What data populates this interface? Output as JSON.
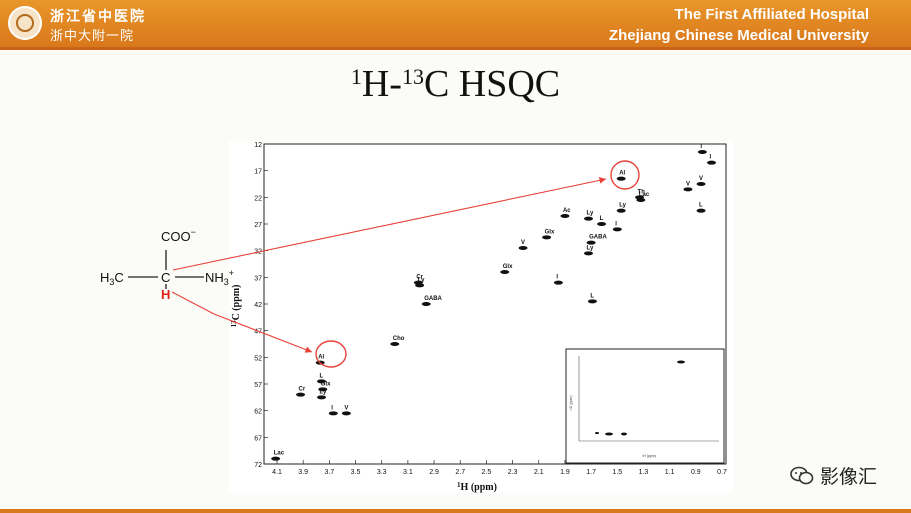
{
  "header": {
    "cn_name": "浙江省中医院",
    "cn_short": "浙中大附一院",
    "en_line1": "The First Affiliated Hospital",
    "en_line2": "Zhejiang Chinese Medical University",
    "accent": "#d9781b"
  },
  "slide": {
    "title_sup1": "1",
    "title_h": "H-",
    "title_sup2": "13",
    "title_rest": "C HSQC"
  },
  "molecule": {
    "coo": "COO",
    "coo_charge": "−",
    "h3c": "H",
    "h3c_sub": "3",
    "h3c_c": "C",
    "c": "C",
    "nh3": "NH",
    "nh3_sub": "3",
    "nh3_charge": "+",
    "h": "H",
    "h_color": "#e0221a",
    "arrow_color": "#e8423a"
  },
  "watermark": {
    "text": "影像汇"
  },
  "chart_data": {
    "type": "scatter",
    "xlabel_sup": "1",
    "xlabel": "H (ppm)",
    "ylabel_sup": "13",
    "ylabel": "C (ppm)",
    "xlim": [
      4.1,
      0.7
    ],
    "ylim": [
      12,
      72
    ],
    "x_ticks": [
      "4.1",
      "3.9",
      "3.7",
      "3.5",
      "3.3",
      "3.1",
      "2.9",
      "2.7",
      "2.5",
      "2.3",
      "2.1",
      "1.9",
      "1.7",
      "1.5",
      "1.3",
      "1.1",
      "0.9",
      "0.7"
    ],
    "y_ticks": [
      "12",
      "17",
      "22",
      "27",
      "32",
      "37",
      "42",
      "47",
      "52",
      "57",
      "62",
      "67",
      "72"
    ],
    "peaks": [
      {
        "label": "I",
        "x": 0.85,
        "y": 13.5
      },
      {
        "label": "I",
        "x": 0.78,
        "y": 15.5
      },
      {
        "label": "V",
        "x": 0.86,
        "y": 19.5
      },
      {
        "label": "V",
        "x": 0.96,
        "y": 20.5
      },
      {
        "label": "Lac",
        "x": 1.32,
        "y": 22.5
      },
      {
        "label": "Th",
        "x": 1.33,
        "y": 22.0
      },
      {
        "label": "L",
        "x": 0.86,
        "y": 24.5
      },
      {
        "label": "Al",
        "x": 1.47,
        "y": 18.5
      },
      {
        "label": "Ac",
        "x": 1.9,
        "y": 25.5
      },
      {
        "label": "Ly",
        "x": 1.72,
        "y": 26.0
      },
      {
        "label": "Ly",
        "x": 1.47,
        "y": 24.5
      },
      {
        "label": "L",
        "x": 1.62,
        "y": 27.0
      },
      {
        "label": "I",
        "x": 1.5,
        "y": 28.0
      },
      {
        "label": "Glx",
        "x": 2.04,
        "y": 29.5
      },
      {
        "label": "GABA",
        "x": 1.7,
        "y": 30.5
      },
      {
        "label": "V",
        "x": 2.22,
        "y": 31.5
      },
      {
        "label": "Ly",
        "x": 1.72,
        "y": 32.5
      },
      {
        "label": "Glx",
        "x": 2.36,
        "y": 36.0
      },
      {
        "label": "I",
        "x": 1.95,
        "y": 38.0
      },
      {
        "label": "Cr",
        "x": 3.02,
        "y": 38.0
      },
      {
        "label": "Ly",
        "x": 3.01,
        "y": 38.5
      },
      {
        "label": "L",
        "x": 1.69,
        "y": 41.5
      },
      {
        "label": "GABA",
        "x": 2.96,
        "y": 42.0
      },
      {
        "label": "Cho",
        "x": 3.2,
        "y": 49.5
      },
      {
        "label": "Al",
        "x": 3.77,
        "y": 53.0
      },
      {
        "label": "L",
        "x": 3.76,
        "y": 56.5
      },
      {
        "label": "Glx",
        "x": 3.75,
        "y": 58.0
      },
      {
        "label": "Cr",
        "x": 3.92,
        "y": 59.0
      },
      {
        "label": "Ly",
        "x": 3.76,
        "y": 59.5
      },
      {
        "label": "I",
        "x": 3.67,
        "y": 62.5
      },
      {
        "label": "V",
        "x": 3.57,
        "y": 62.5
      },
      {
        "label": "Lac",
        "x": 4.11,
        "y": 71.0
      }
    ],
    "inset": {
      "xlabel": "¹H (ppm)",
      "ylabel": "¹³C (ppm)"
    }
  }
}
